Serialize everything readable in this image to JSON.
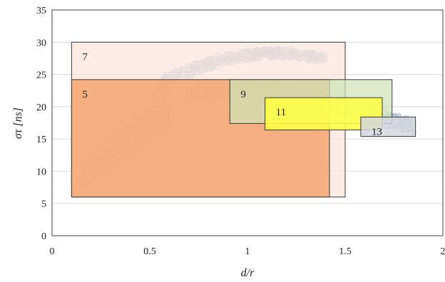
{
  "chart_data": {
    "type": "scatter",
    "title": "",
    "xlabel": "d/r",
    "ylabel": "στ [ns]",
    "xlim": [
      0,
      2
    ],
    "ylim": [
      0,
      35
    ],
    "x_ticks": [
      "0",
      "0.5",
      "1",
      "1.5",
      "2"
    ],
    "y_ticks": [
      "0",
      "5",
      "10",
      "15",
      "20",
      "25",
      "30",
      "35"
    ],
    "grid": "horizontal",
    "colors": {
      "scatter_blue": "#a9bed6",
      "scatter_orange": "#d8916a",
      "box7": "#fbe6dc",
      "box5": "#f4a672",
      "box9": "#cfe3b4",
      "box11": "#ffff44",
      "box13": "#d3d7dd"
    },
    "boxes": [
      {
        "label": "7",
        "x0": 0.1,
        "x1": 1.5,
        "y0": 6.0,
        "y1": 30.0,
        "color": "#fbe6dc",
        "opacity": 0.75
      },
      {
        "label": "5",
        "x0": 0.1,
        "x1": 1.42,
        "y0": 6.0,
        "y1": 24.2,
        "color": "#f4a672",
        "opacity": 0.88
      },
      {
        "label": "9",
        "x0": 0.91,
        "x1": 1.74,
        "y0": 17.4,
        "y1": 24.2,
        "color": "#cfe3b4",
        "opacity": 0.72
      },
      {
        "label": "11",
        "x0": 1.09,
        "x1": 1.69,
        "y0": 16.4,
        "y1": 21.4,
        "color": "#ffff44",
        "opacity": 0.88
      },
      {
        "label": "13",
        "x0": 1.58,
        "x1": 1.86,
        "y0": 15.4,
        "y1": 18.4,
        "color": "#d3d7dd",
        "opacity": 0.85
      }
    ],
    "series": [
      {
        "marker": "circle-hollow",
        "color": "#a9bed6",
        "x": [
          0.55,
          0.6,
          0.65,
          0.7,
          0.75,
          0.8,
          0.85,
          0.9,
          0.95,
          1.0,
          1.05,
          1.1,
          1.15,
          1.2,
          1.25,
          1.3,
          1.35,
          1.4
        ],
        "y_low": [
          22.5,
          23.2,
          24.0,
          24.6,
          25.2,
          25.8,
          26.3,
          26.7,
          27.0,
          27.2,
          27.4,
          27.6,
          27.6,
          27.5,
          27.4,
          27.2,
          27.0,
          26.8
        ],
        "y_high": [
          24.5,
          25.2,
          25.9,
          26.5,
          27.0,
          27.5,
          27.9,
          28.2,
          28.5,
          28.7,
          28.9,
          29.0,
          29.0,
          29.0,
          28.8,
          28.6,
          28.4,
          28.0
        ]
      },
      {
        "marker": "circle-hollow",
        "color": "#a9bed6",
        "x": [
          0.7,
          0.8,
          0.9,
          1.0,
          1.1,
          1.2,
          1.3,
          1.4,
          1.5,
          1.6,
          1.7,
          1.75,
          1.8,
          1.85
        ],
        "y_low": [
          21.2,
          21.6,
          21.8,
          21.8,
          21.5,
          21.0,
          20.4,
          19.6,
          18.8,
          17.9,
          17.1,
          16.6,
          16.2,
          15.8
        ],
        "y_high": [
          23.4,
          23.7,
          23.8,
          23.7,
          23.4,
          22.9,
          22.3,
          21.6,
          20.9,
          20.1,
          19.3,
          18.9,
          18.5,
          17.8
        ]
      },
      {
        "marker": "circle-hollow",
        "color": "#a9bed6",
        "x": [
          0.12,
          0.15,
          0.2,
          0.25,
          0.3,
          0.35,
          0.4,
          0.45,
          0.5,
          0.55,
          0.6
        ],
        "y_low": [
          6.5,
          7.2,
          8.3,
          9.5,
          10.8,
          12.0,
          13.2,
          14.4,
          15.5,
          16.5,
          17.4
        ],
        "y_high": [
          8.5,
          9.8,
          11.5,
          13.0,
          14.5,
          16.0,
          17.4,
          18.7,
          20.0,
          21.2,
          22.3
        ]
      }
    ]
  }
}
